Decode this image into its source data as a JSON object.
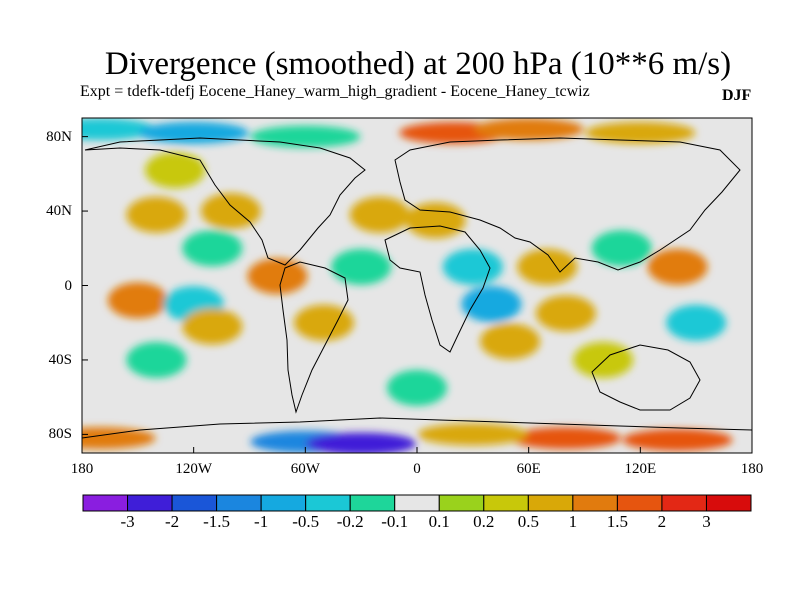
{
  "title": "Divergence (smoothed) at 200 hPa (10**6 m/s)",
  "subtitle": "Expt = tdefk-tdefj Eocene_Haney_warm_high_gradient - Eocene_Haney_tcwiz",
  "season": "DJF",
  "lat_labels": [
    "80N",
    "40N",
    "0",
    "40S",
    "80S"
  ],
  "lon_labels": [
    "180",
    "120W",
    "60W",
    "0",
    "60E",
    "120E",
    "180"
  ],
  "colorbar": {
    "labels": [
      "-3",
      "-2",
      "-1.5",
      "-1",
      "-0.5",
      "-0.2",
      "-0.1",
      "0.1",
      "0.2",
      "0.5",
      "1",
      "1.5",
      "2",
      "3"
    ],
    "colors": [
      "#8a1ee0",
      "#3f1ed8",
      "#1a56d8",
      "#1b86df",
      "#15a9e0",
      "#1bc8d6",
      "#1ed69a",
      "#e6e6e6",
      "#9ad21c",
      "#c8c80a",
      "#d9a808",
      "#e17b0e",
      "#e6550f",
      "#e32815",
      "#d80c0c"
    ]
  },
  "chart_data": {
    "type": "heatmap",
    "title": "Divergence (smoothed) at 200 hPa (10**6 m/s)",
    "subtitle": "Expt = tdefk-tdefj Eocene_Haney_warm_high_gradient - Eocene_Haney_tcwiz",
    "season": "DJF",
    "x_range": [
      -180,
      180
    ],
    "y_range": [
      -90,
      90
    ],
    "x_ticks": [
      -180,
      -120,
      -60,
      0,
      60,
      120,
      180
    ],
    "y_ticks": [
      80,
      40,
      0,
      -40,
      -80
    ],
    "levels": [
      -3,
      -2,
      -1.5,
      -1,
      -0.5,
      -0.2,
      -0.1,
      0.1,
      0.2,
      0.5,
      1,
      1.5,
      2,
      3
    ],
    "grid": false,
    "legend": "bottom",
    "features": [
      {
        "lon": -170,
        "lat": 84,
        "value": -0.5
      },
      {
        "lon": -120,
        "lat": 82,
        "value": -1
      },
      {
        "lon": -60,
        "lat": 80,
        "value": -0.2
      },
      {
        "lon": 20,
        "lat": 82,
        "value": 1.5
      },
      {
        "lon": 60,
        "lat": 84,
        "value": 1
      },
      {
        "lon": 120,
        "lat": 82,
        "value": 0.5
      },
      {
        "lon": -130,
        "lat": 62,
        "value": 0.2
      },
      {
        "lon": -140,
        "lat": 38,
        "value": 0.5
      },
      {
        "lon": -100,
        "lat": 40,
        "value": 0.5
      },
      {
        "lon": -110,
        "lat": 20,
        "value": -0.2
      },
      {
        "lon": -150,
        "lat": -8,
        "value": 1
      },
      {
        "lon": -120,
        "lat": -10,
        "value": -0.5
      },
      {
        "lon": -110,
        "lat": -22,
        "value": 0.5
      },
      {
        "lon": -75,
        "lat": 5,
        "value": 1
      },
      {
        "lon": -50,
        "lat": -20,
        "value": 0.5
      },
      {
        "lon": -30,
        "lat": 10,
        "value": -0.2
      },
      {
        "lon": -20,
        "lat": 38,
        "value": 0.5
      },
      {
        "lon": 10,
        "lat": 35,
        "value": 0.5
      },
      {
        "lon": 30,
        "lat": 10,
        "value": -0.5
      },
      {
        "lon": 40,
        "lat": -10,
        "value": -1
      },
      {
        "lon": 50,
        "lat": -30,
        "value": 0.5
      },
      {
        "lon": 70,
        "lat": 10,
        "value": 0.5
      },
      {
        "lon": 80,
        "lat": -15,
        "value": 0.5
      },
      {
        "lon": 110,
        "lat": 20,
        "value": -0.2
      },
      {
        "lon": 140,
        "lat": 10,
        "value": 1
      },
      {
        "lon": 150,
        "lat": -20,
        "value": -0.5
      },
      {
        "lon": 100,
        "lat": -40,
        "value": 0.2
      },
      {
        "lon": -140,
        "lat": -40,
        "value": -0.2
      },
      {
        "lon": 0,
        "lat": -55,
        "value": -0.2
      },
      {
        "lon": -170,
        "lat": -82,
        "value": 1
      },
      {
        "lon": -60,
        "lat": -84,
        "value": -1.5
      },
      {
        "lon": -30,
        "lat": -85,
        "value": -3
      },
      {
        "lon": 80,
        "lat": -82,
        "value": 1.5
      },
      {
        "lon": 140,
        "lat": -83,
        "value": 1.5
      },
      {
        "lon": 30,
        "lat": -80,
        "value": 0.5
      }
    ]
  }
}
